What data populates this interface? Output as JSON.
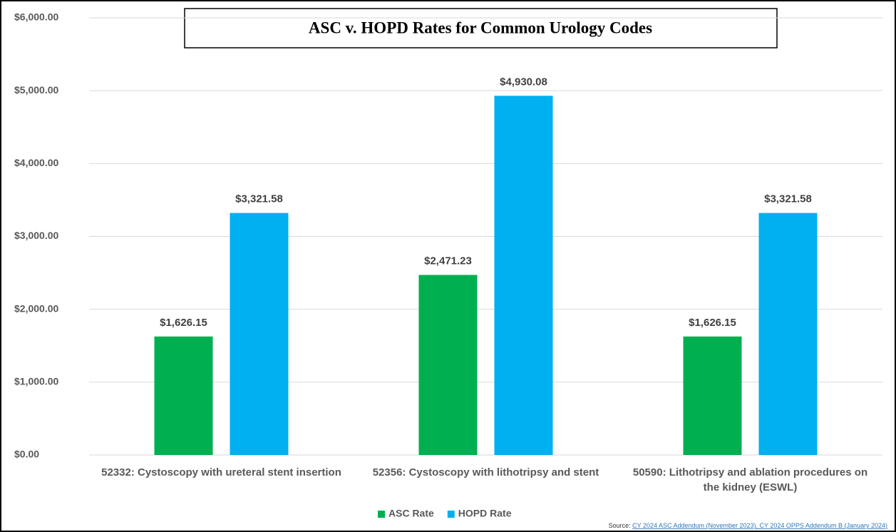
{
  "chart_data": {
    "type": "bar",
    "title": "ASC v. HOPD Rates for Common Urology Codes",
    "categories": [
      "52332: Cystoscopy with ureteral stent insertion",
      "52356: Cystoscopy with lithotripsy and stent",
      "50590: Lithotripsy and ablation procedures on the kidney (ESWL)"
    ],
    "series": [
      {
        "name": "ASC Rate",
        "color": "#00b050",
        "values": [
          1626.15,
          2471.23,
          1626.15
        ],
        "value_labels": [
          "$1,626.15",
          "$2,471.23",
          "$1,626.15"
        ]
      },
      {
        "name": "HOPD Rate",
        "color": "#00b0f0",
        "values": [
          3321.58,
          4930.08,
          3321.58
        ],
        "value_labels": [
          "$3,321.58",
          "$4,930.08",
          "$3,321.58"
        ]
      }
    ],
    "ylim": [
      0,
      6000
    ],
    "yticks": [
      {
        "value": 0,
        "label": "$0.00"
      },
      {
        "value": 1000,
        "label": "$1,000.00"
      },
      {
        "value": 2000,
        "label": "$2,000.00"
      },
      {
        "value": 3000,
        "label": "$3,000.00"
      },
      {
        "value": 4000,
        "label": "$4,000.00"
      },
      {
        "value": 5000,
        "label": "$5,000.00"
      },
      {
        "value": 6000,
        "label": "$6,000.00"
      }
    ],
    "grid": true,
    "legend": "bottom",
    "source_label": "Source:",
    "source_link": "CY 2024 ASC Addendum (November 2023), CY 2024 OPPS Addendum B (January 2024)"
  }
}
